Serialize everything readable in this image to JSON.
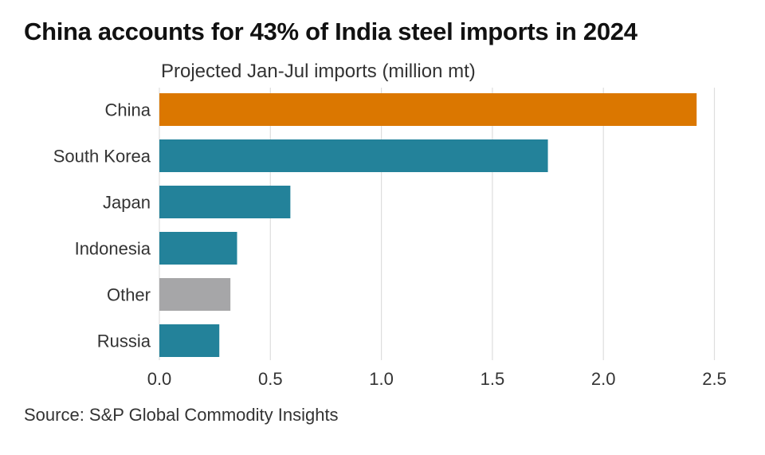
{
  "chart_data": {
    "type": "bar",
    "orientation": "horizontal",
    "title": "China accounts for 43% of India steel imports in 2024",
    "subtitle": "Projected Jan-Jul imports (million mt)",
    "source": "Source: S&P Global Commodity Insights",
    "categories": [
      "China",
      "South Korea",
      "Japan",
      "Indonesia",
      "Other",
      "Russia"
    ],
    "values": [
      2.42,
      1.75,
      0.59,
      0.35,
      0.32,
      0.27
    ],
    "colors": [
      "#db7700",
      "#23829a",
      "#23829a",
      "#23829a",
      "#a6a6a8",
      "#23829a"
    ],
    "xlabel": "",
    "ylabel": "",
    "xlim": [
      0,
      2.5
    ],
    "xticks": [
      0.0,
      0.5,
      1.0,
      1.5,
      2.0,
      2.5
    ],
    "xtick_labels": [
      "0.0",
      "0.5",
      "1.0",
      "1.5",
      "2.0",
      "2.5"
    ],
    "grid": true,
    "legend": "none"
  }
}
